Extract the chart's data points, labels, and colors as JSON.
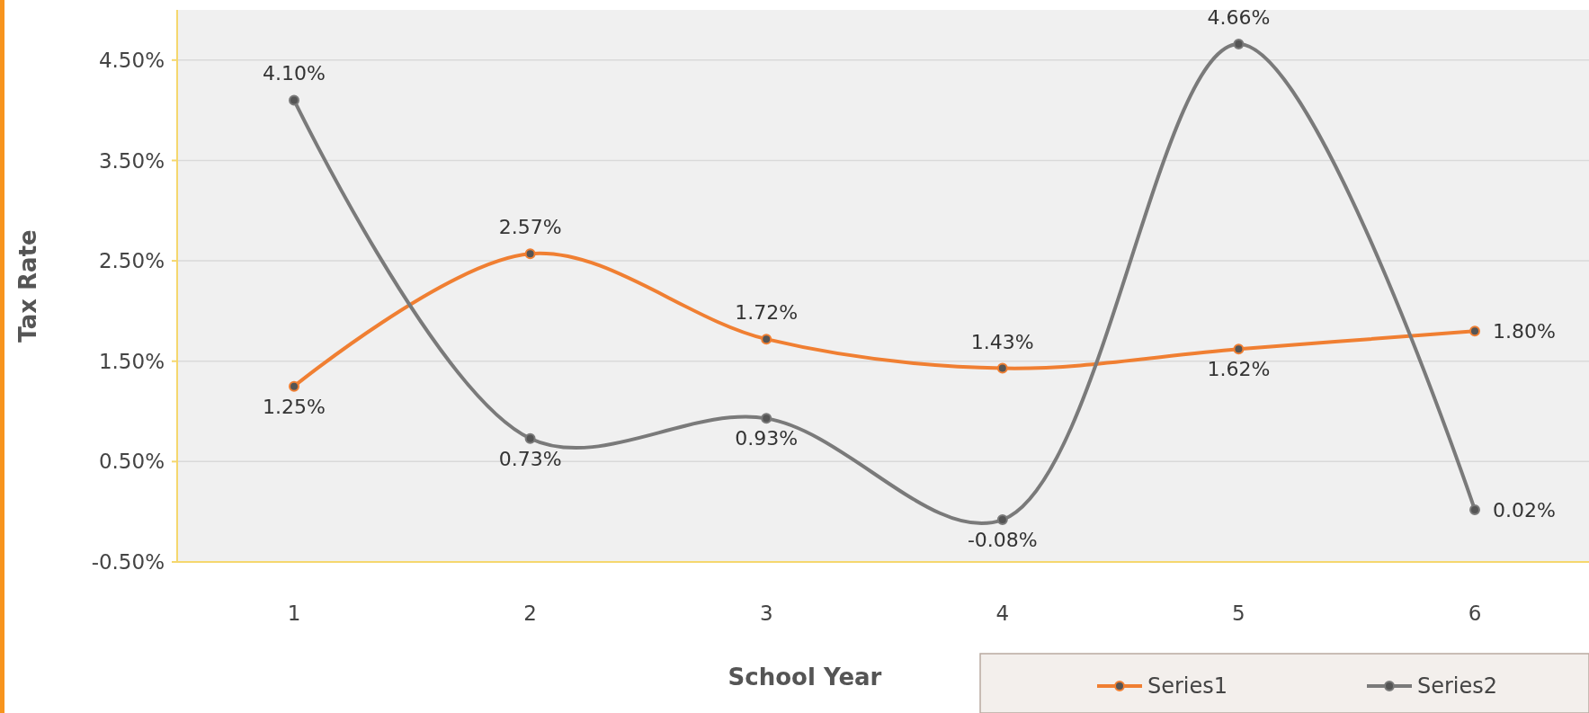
{
  "chart_data": {
    "type": "line",
    "xlabel": "School Year",
    "ylabel": "Tax Rate",
    "categories": [
      "1",
      "2",
      "3",
      "4",
      "5",
      "6"
    ],
    "series": [
      {
        "name": "Series1",
        "color": "#f07f32",
        "values": [
          1.25,
          2.57,
          1.72,
          1.43,
          1.62,
          1.8
        ],
        "value_labels": [
          "1.25%",
          "2.57%",
          "1.72%",
          "1.43%",
          "1.62%",
          "1.80%"
        ]
      },
      {
        "name": "Series2",
        "color": "#7a7a7a",
        "values": [
          4.1,
          0.73,
          0.93,
          -0.08,
          4.66,
          0.02
        ],
        "value_labels": [
          "4.10%",
          "0.73%",
          "0.93%",
          "-0.08%",
          "4.66%",
          "0.02%"
        ]
      }
    ],
    "ylim": [
      -0.5,
      5.0
    ],
    "yticks": [
      {
        "value": -0.5,
        "label": "-0.50%"
      },
      {
        "value": 0.5,
        "label": "0.50%"
      },
      {
        "value": 1.5,
        "label": "1.50%"
      },
      {
        "value": 2.5,
        "label": "2.50%"
      },
      {
        "value": 3.5,
        "label": "3.50%"
      },
      {
        "value": 4.5,
        "label": "4.50%"
      }
    ],
    "grid": "y",
    "legend": "bottom right",
    "marker": "circle",
    "line_style": "solid"
  }
}
